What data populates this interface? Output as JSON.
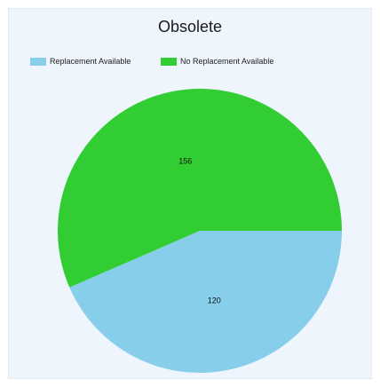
{
  "chart_data": {
    "type": "pie",
    "title": "Obsolete",
    "legend": {
      "placement": "top-left",
      "items": [
        {
          "name": "Replacement Available",
          "color": "#87ceeb"
        },
        {
          "name": "No Replacement Available",
          "color": "#32cd32"
        }
      ]
    },
    "slices": [
      {
        "name": "Replacement Available",
        "value": 120,
        "color": "#87ceeb"
      },
      {
        "name": "No Replacement Available",
        "value": 156,
        "color": "#32cd32"
      }
    ]
  }
}
